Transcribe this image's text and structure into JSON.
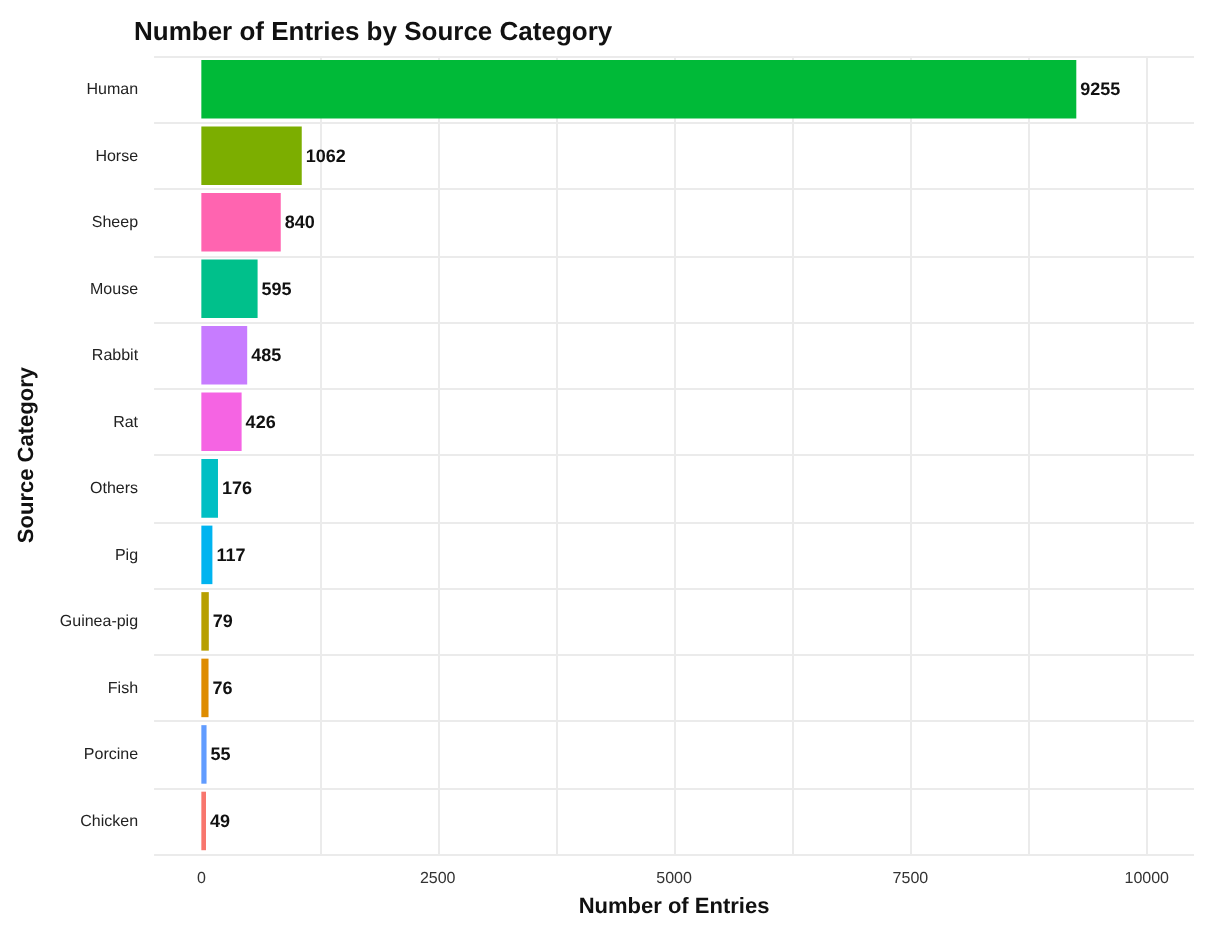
{
  "chart_data": {
    "type": "bar",
    "orientation": "horizontal",
    "title": "Number of Entries by Source Category",
    "xlabel": "Number of Entries",
    "ylabel": "Source Category",
    "categories": [
      "Human",
      "Horse",
      "Sheep",
      "Mouse",
      "Rabbit",
      "Rat",
      "Others",
      "Pig",
      "Guinea-pig",
      "Fish",
      "Porcine",
      "Chicken"
    ],
    "values": [
      9255,
      1062,
      840,
      595,
      485,
      426,
      176,
      117,
      79,
      76,
      55,
      49
    ],
    "colors": [
      "#00ba38",
      "#7cae00",
      "#ff64b0",
      "#00c08b",
      "#c77cff",
      "#f564e3",
      "#00bfc4",
      "#00b4f0",
      "#b79f00",
      "#de8c00",
      "#619cff",
      "#f8766d"
    ],
    "xlim": [
      -500,
      10500
    ],
    "xticks": [
      0,
      {
        "value": 1250,
        "label": null
      },
      2500,
      {
        "value": 3750,
        "label": null
      },
      5000,
      {
        "value": 6250,
        "label": null
      },
      7500,
      {
        "value": 8750,
        "label": null
      },
      10000
    ],
    "data_labels": true,
    "grid": true
  }
}
